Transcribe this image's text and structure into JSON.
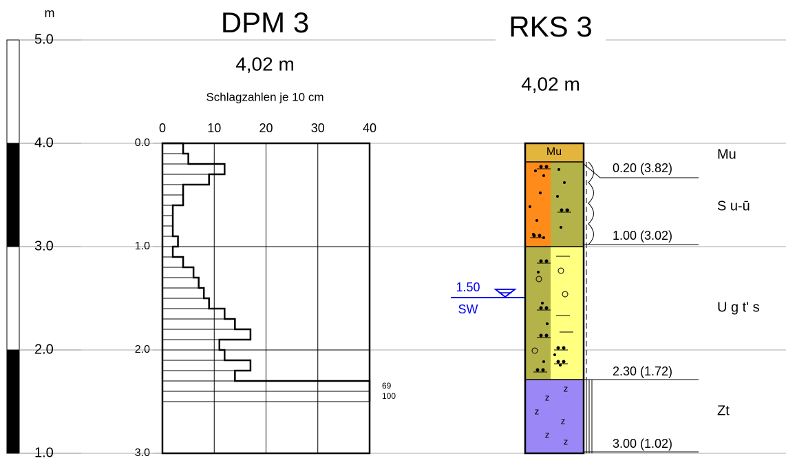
{
  "scale": {
    "unit": "m",
    "ticks": [
      "5.0",
      "4.0",
      "3.0",
      "2.0",
      "1.0"
    ]
  },
  "dpm": {
    "title": "DPM 3",
    "surface": "4,02 m",
    "axis_title": "Schlagzahlen je 10 cm",
    "xlim": [
      0,
      40
    ],
    "xticks": [
      0,
      10,
      20,
      30,
      40
    ],
    "depth_ticks": [
      "0.0",
      "1.0",
      "2.0",
      "3.0"
    ],
    "values": [
      4,
      5,
      12,
      9,
      4,
      4,
      2,
      2,
      2,
      3,
      2,
      4,
      6,
      7,
      8,
      9,
      12,
      14,
      17,
      11,
      12,
      17,
      14,
      69,
      100
    ]
  },
  "rks": {
    "title": "RKS 3",
    "surface": "4,02 m",
    "layers": [
      {
        "code": "Mu",
        "depth_label": "0.20 (3.82)",
        "description": "Mu"
      },
      {
        "depth_label": "1.00 (3.02)",
        "description": "S u-ū"
      },
      {
        "depth_label": "2.30 (1.72)",
        "description": "U g t' s"
      },
      {
        "depth_label": "3.00 (1.02)",
        "description": "Zt"
      }
    ],
    "water": {
      "depth": "1.50",
      "label": "SW"
    }
  }
}
